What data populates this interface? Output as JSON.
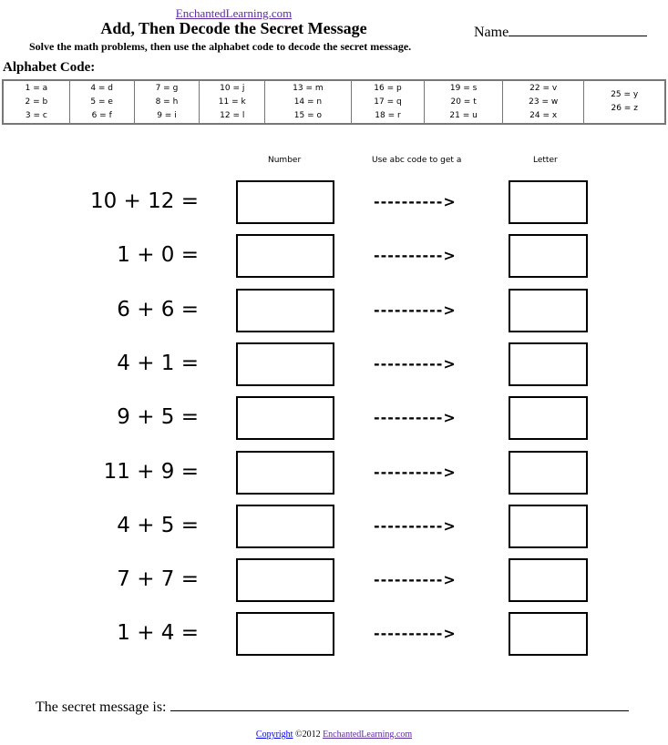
{
  "header": {
    "site": "EnchantedLearning.com",
    "title": "Add, Then Decode the Secret Message",
    "name_label": "Name",
    "instructions": "Solve the math problems, then use the alphabet code to decode the secret message."
  },
  "alphabet": {
    "label": "Alphabet Code:",
    "columns": [
      [
        "1 = a",
        "2 = b",
        "3 = c"
      ],
      [
        "4 = d",
        "5 = e",
        "6 = f"
      ],
      [
        "7 = g",
        "8 = h",
        "9 = i"
      ],
      [
        "10 = j",
        "11 = k",
        "12 = l"
      ],
      [
        "13 = m",
        "14 = n",
        "15 = o"
      ],
      [
        "16 = p",
        "17 = q",
        "18 = r"
      ],
      [
        "19 = s",
        "20 = t",
        "21 = u"
      ],
      [
        "22 = v",
        "23 = w",
        "24 = x"
      ],
      [
        "25 = y",
        "26 = z"
      ]
    ]
  },
  "columns": {
    "number": "Number",
    "code": "Use abc code to get a",
    "letter": "Letter"
  },
  "arrow": "---------->",
  "problems": [
    "10 + 12 =",
    "1 + 0 =",
    "6 + 6 =",
    "4 + 1 =",
    "9 + 5 =",
    "11 + 9 =",
    "4 + 5 =",
    "7 + 7 =",
    "1 + 4 ="
  ],
  "footer": {
    "secret_label": "The secret message is:",
    "copyright_link": "Copyright",
    "copyright_text": "©2012",
    "site_link": "EnchantedLearning.com"
  }
}
